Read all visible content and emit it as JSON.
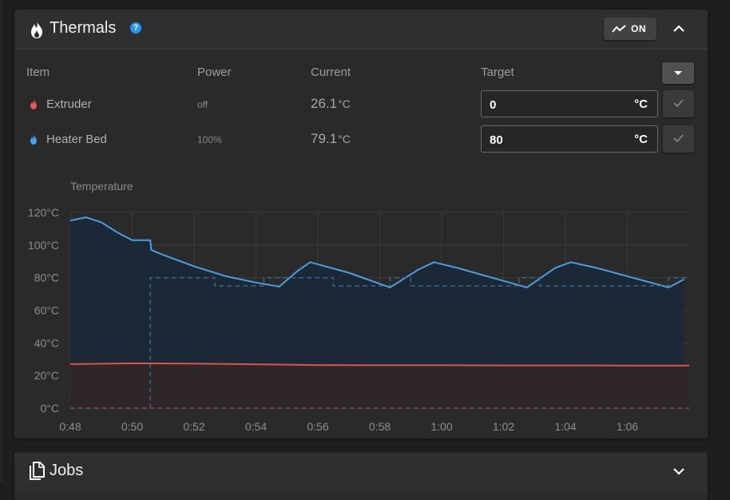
{
  "thermals": {
    "title": "Thermals",
    "help_icon": "?",
    "chart_toggle_label": "ON",
    "columns": {
      "item": "Item",
      "power": "Power",
      "current": "Current",
      "target": "Target"
    },
    "rows": [
      {
        "name": "Extruder",
        "icon": "fire-icon",
        "icon_color": "#e05858",
        "power": "off",
        "current": "26.1",
        "unit": "°C",
        "target_value": "0",
        "target_unit": "°C"
      },
      {
        "name": "Heater Bed",
        "icon": "fire-icon",
        "icon_color": "#42a5f5",
        "power": "100%",
        "current": "79.1",
        "unit": "°C",
        "target_value": "80",
        "target_unit": "°C"
      }
    ]
  },
  "chart_data": {
    "type": "line",
    "title": "Temperature",
    "xlabel": "",
    "ylabel": "",
    "ylim": [
      0,
      120
    ],
    "xlim": [
      "0:48",
      "1:08"
    ],
    "y_ticks": [
      "0°C",
      "20°C",
      "40°C",
      "60°C",
      "80°C",
      "100°C",
      "120°C"
    ],
    "x_ticks": [
      "0:48",
      "0:50",
      "0:52",
      "0:54",
      "0:56",
      "0:58",
      "1:00",
      "1:02",
      "1:04",
      "1:06"
    ],
    "grid": true,
    "legend": "none",
    "series": [
      {
        "color": "#4a9fe0",
        "fill": "#1b2836",
        "points": [
          [
            "0:48",
            115
          ],
          [
            "0:48:30",
            117
          ],
          [
            "0:49",
            114
          ],
          [
            "0:49:30",
            108
          ],
          [
            "0:50",
            103
          ],
          [
            "0:50:35",
            103
          ],
          [
            "0:50:37",
            97
          ],
          [
            "0:51",
            94
          ],
          [
            "0:52",
            87
          ],
          [
            "0:53",
            81
          ],
          [
            "0:54",
            77
          ],
          [
            "0:54:45",
            74.5
          ],
          [
            "0:55:20",
            84
          ],
          [
            "0:55:45",
            89.5
          ],
          [
            "0:57:00",
            83
          ],
          [
            "0:58:20",
            74
          ],
          [
            "0:59:15",
            85
          ],
          [
            "0:59:45",
            89.5
          ],
          [
            "1:00:30",
            86
          ],
          [
            "1:02:45",
            74
          ],
          [
            "1:03:40",
            86
          ],
          [
            "1:04:10",
            89.5
          ],
          [
            "1:05:00",
            86
          ],
          [
            "1:07:20",
            74
          ],
          [
            "1:07:50",
            79
          ]
        ]
      },
      {
        "color": "#3d6a94",
        "dashed": true,
        "points": [
          [
            "0:48",
            0
          ],
          [
            "0:50:35",
            0
          ],
          [
            "0:50:35",
            80
          ],
          [
            "0:52:40",
            80
          ],
          [
            "0:52:40",
            75
          ],
          [
            "0:54:15",
            75
          ],
          [
            "0:54:15",
            80
          ],
          [
            "0:56:30",
            80
          ],
          [
            "0:56:30",
            75
          ],
          [
            "0:58:20",
            75
          ],
          [
            "0:58:20",
            80
          ],
          [
            "0:59:00",
            80
          ],
          [
            "0:59:00",
            75
          ],
          [
            "1:02:30",
            75
          ],
          [
            "1:02:30",
            80
          ],
          [
            "1:03:10",
            80
          ],
          [
            "1:03:10",
            75
          ],
          [
            "1:07:20",
            75
          ],
          [
            "1:07:20",
            80
          ],
          [
            "1:08",
            80
          ]
        ]
      },
      {
        "color": "#d9534f",
        "fill": "#2e2628",
        "points": [
          [
            "0:48",
            27
          ],
          [
            "0:50",
            27.5
          ],
          [
            "0:52",
            27.3
          ],
          [
            "0:54",
            26.9
          ],
          [
            "0:56",
            26.4
          ],
          [
            "0:58",
            26.3
          ],
          [
            "1:00",
            26.3
          ],
          [
            "1:02",
            26.2
          ],
          [
            "1:04",
            26.2
          ],
          [
            "1:06",
            26.1
          ],
          [
            "1:08",
            26.1
          ]
        ]
      },
      {
        "color": "#7a4a4a",
        "dashed": true,
        "points": [
          [
            "0:48",
            0
          ],
          [
            "1:08",
            0
          ]
        ]
      }
    ]
  },
  "jobs": {
    "title": "Jobs"
  }
}
